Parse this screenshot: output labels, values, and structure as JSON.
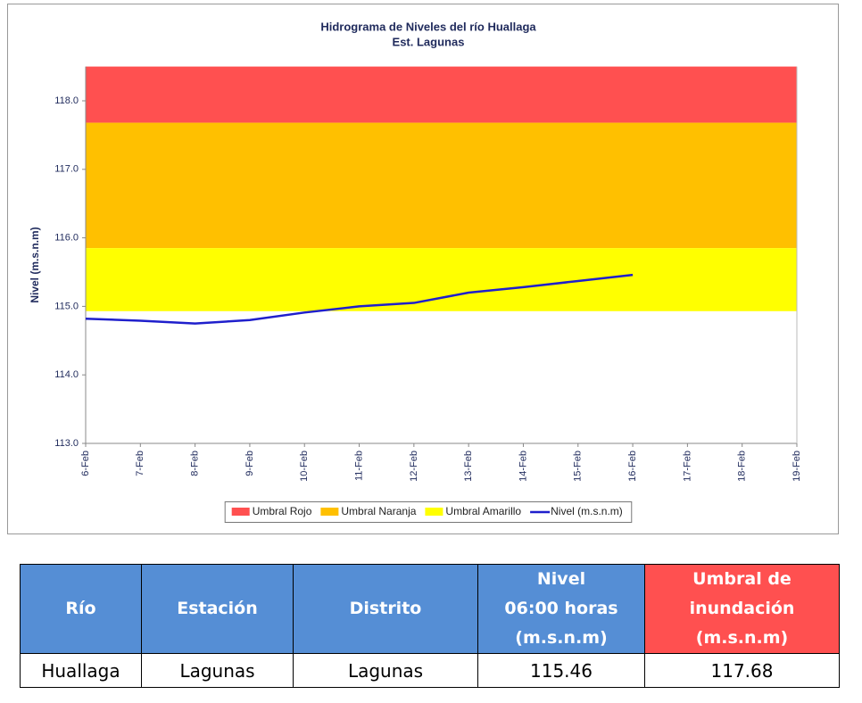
{
  "chart_data": {
    "type": "line",
    "title": "Hidrograma de Niveles del río Huallaga",
    "subtitle": "Est. Lagunas",
    "y_label": "Nivel (m.s.n.m)",
    "categories": [
      "6-Feb",
      "7-Feb",
      "8-Feb",
      "9-Feb",
      "10-Feb",
      "11-Feb",
      "12-Feb",
      "13-Feb",
      "14-Feb",
      "15-Feb",
      "16-Feb",
      "17-Feb",
      "18-Feb",
      "19-Feb"
    ],
    "series": [
      {
        "name": "Nivel (m.s.n.m)",
        "color": "#1f1fcc",
        "values": [
          114.82,
          114.79,
          114.75,
          114.8,
          114.91,
          115.0,
          115.05,
          115.2,
          115.28,
          115.37,
          115.46,
          null,
          null,
          null
        ]
      }
    ],
    "bands": [
      {
        "name": "Umbral Rojo",
        "color": "#ff5050",
        "from": 117.68,
        "to": 118.5
      },
      {
        "name": "Umbral Naranja",
        "color": "#ffc000",
        "from": 115.85,
        "to": 117.68
      },
      {
        "name": "Umbral Amarillo",
        "color": "#ffff00",
        "from": 114.93,
        "to": 115.85
      }
    ],
    "ylim": [
      113,
      118.5
    ],
    "yticks": [
      {
        "value": 113,
        "label": "113.0"
      },
      {
        "value": 114,
        "label": "114.0"
      },
      {
        "value": 115,
        "label": "115.0"
      },
      {
        "value": 116,
        "label": "116.0"
      },
      {
        "value": 117,
        "label": "117.0"
      },
      {
        "value": 118,
        "label": "118.0"
      }
    ],
    "legend": "bottom"
  },
  "table": {
    "headers": [
      [
        "Río"
      ],
      [
        "Estación"
      ],
      [
        "Distrito"
      ],
      [
        "Nivel",
        "06:00 horas",
        "(m.s.n.m)"
      ],
      [
        "Umbral de",
        "inundación",
        "(m.s.n.m)"
      ]
    ],
    "rows": [
      [
        "Huallaga",
        "Lagunas",
        "Lagunas",
        "115.46",
        "117.68"
      ]
    ]
  }
}
